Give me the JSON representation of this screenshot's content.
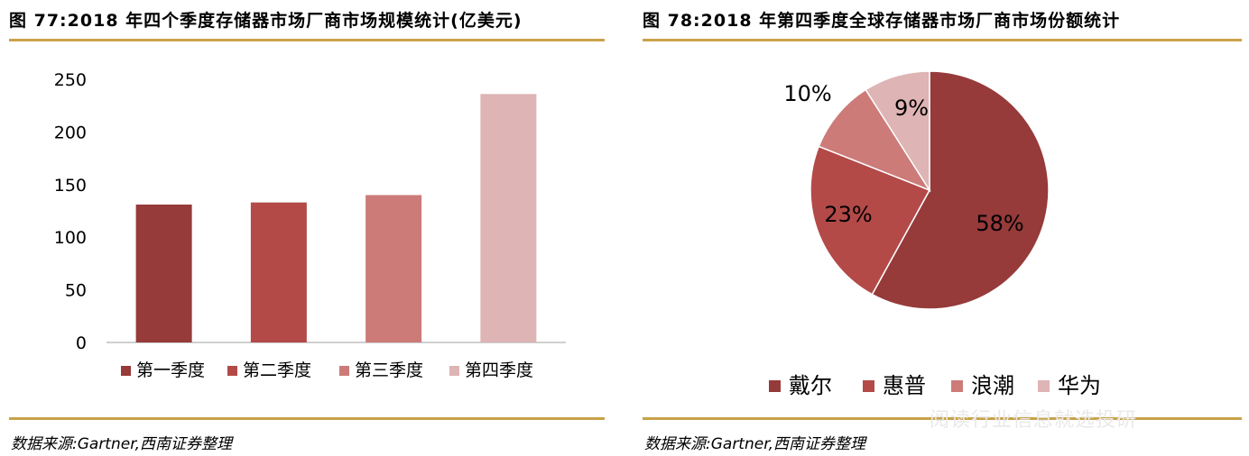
{
  "left": {
    "figure_title": "图 77:2018 年四个季度存储器市场厂商市场规模统计(亿美元)",
    "source": "数据来源:Gartner,西南证券整理"
  },
  "right": {
    "figure_title": "图 78:2018 年第四季度全球存储器市场厂商市场份额统计",
    "source": "数据来源:Gartner,西南证券整理"
  },
  "watermark": "阅读行业信息就选投研",
  "chart_data": [
    {
      "type": "bar",
      "title": "",
      "xlabel": "",
      "ylabel": "",
      "categories": [
        "第一季度",
        "第二季度",
        "第三季度",
        "第四季度"
      ],
      "values": [
        131,
        133,
        140,
        236
      ],
      "ylim": [
        0,
        250
      ],
      "yticks": [
        0,
        50,
        100,
        150,
        200,
        250
      ],
      "colors": [
        "#963a3a",
        "#b34a48",
        "#cc7b79",
        "#deb4b4"
      ],
      "grid": false,
      "legend": "bottom"
    },
    {
      "type": "pie",
      "title": "",
      "labels": [
        "戴尔",
        "惠普",
        "浪潮",
        "华为"
      ],
      "values": [
        58,
        23,
        10,
        9
      ],
      "value_labels": [
        "58%",
        "23%",
        "10%",
        "9%"
      ],
      "colors": [
        "#963a3a",
        "#b34a48",
        "#cc7b79",
        "#deb4b4"
      ],
      "legend": "bottom"
    }
  ]
}
